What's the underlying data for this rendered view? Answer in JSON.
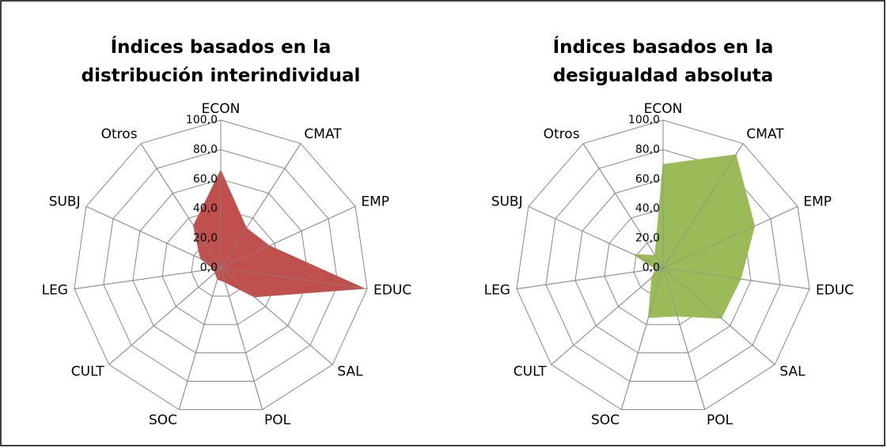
{
  "chart_data": [
    {
      "type": "radar",
      "title": "Índices basados en la distribución interindividual",
      "categories": [
        "ECON",
        "CMAT",
        "EMP",
        "EDUC",
        "SAL",
        "POL",
        "SOC",
        "CULT",
        "LEG",
        "SUBJ",
        "Otros"
      ],
      "values": [
        66,
        32,
        36,
        98,
        30,
        10,
        8,
        5,
        5,
        15,
        34
      ],
      "color": "#c0504d",
      "ylim": [
        0,
        100
      ],
      "yticks": [
        {
          "value": 0,
          "label": "0,0"
        },
        {
          "value": 20,
          "label": "20,0"
        },
        {
          "value": 40,
          "label": "40,0"
        },
        {
          "value": 60,
          "label": "60,0"
        },
        {
          "value": 80,
          "label": "80,0"
        },
        {
          "value": 100,
          "label": "100,0"
        }
      ]
    },
    {
      "type": "radar",
      "title": "Índices basados en la desigualdad absoluta",
      "categories": [
        "ECON",
        "CMAT",
        "EMP",
        "EDUC",
        "SAL",
        "POL",
        "SOC",
        "CULT",
        "LEG",
        "SUBJ",
        "Otros"
      ],
      "values": [
        70,
        91,
        68,
        53,
        52,
        34,
        35,
        10,
        5,
        22,
        10
      ],
      "color": "#9bbb59",
      "ylim": [
        0,
        100
      ],
      "yticks": [
        {
          "value": 0,
          "label": "0,0"
        },
        {
          "value": 20,
          "label": "20,0"
        },
        {
          "value": 40,
          "label": "40,0"
        },
        {
          "value": 60,
          "label": "60,0"
        },
        {
          "value": 80,
          "label": "80,0"
        },
        {
          "value": 100,
          "label": "100,0"
        }
      ]
    }
  ]
}
